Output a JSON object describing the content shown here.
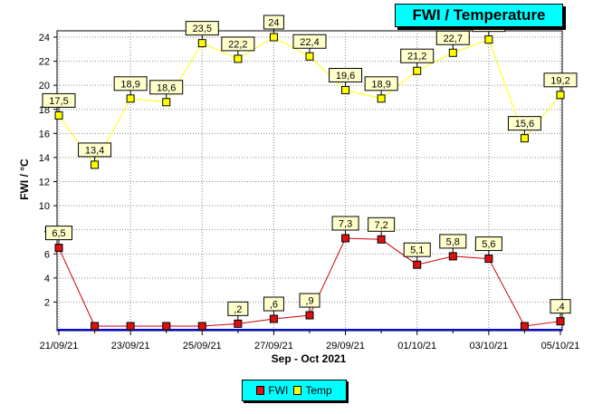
{
  "chart_data": {
    "type": "line",
    "title": "FWI / Temperature",
    "xlabel": "Sep - Oct 2021",
    "ylabel": "FWI / °C",
    "ylim": [
      0,
      24
    ],
    "yticks": [
      "2",
      "4",
      "6",
      "8",
      "10",
      "12",
      "14",
      "16",
      "18",
      "20",
      "22",
      "24"
    ],
    "x": [
      "21/09/21",
      "22/09/21",
      "23/09/21",
      "24/09/21",
      "25/09/21",
      "26/09/21",
      "27/09/21",
      "28/09/21",
      "29/09/21",
      "30/09/21",
      "01/10/21",
      "02/10/21",
      "03/10/21",
      "04/10/21",
      "05/10/21"
    ],
    "xtick_labels": [
      "21/09/21",
      "23/09/21",
      "25/09/21",
      "27/09/21",
      "29/09/21",
      "01/10/21",
      "03/10/21",
      "05/10/21"
    ],
    "grid": true,
    "legend_position": "bottom",
    "series": [
      {
        "name": "FWI",
        "color": "#cc0000",
        "marker_color": "#dd1111",
        "values": [
          6.5,
          0,
          0,
          0,
          0,
          0.2,
          0.6,
          0.9,
          7.3,
          7.2,
          5.1,
          5.8,
          5.6,
          0,
          0.4
        ],
        "labels": [
          "6,5",
          null,
          null,
          null,
          null,
          ",2",
          ",6",
          ",9",
          "7,3",
          "7,2",
          "5,1",
          "5,8",
          "5,6",
          null,
          ",4"
        ]
      },
      {
        "name": "Temp",
        "color": "#ffff00",
        "marker_color": "#ffff00",
        "values": [
          17.5,
          13.4,
          18.9,
          18.6,
          23.5,
          22.2,
          24,
          22.4,
          19.6,
          18.9,
          21.2,
          22.7,
          23.8,
          15.6,
          19.2
        ],
        "labels": [
          "17,5",
          "13,4",
          "18,9",
          "18,6",
          "23,5",
          "22,2",
          "24",
          "22,4",
          "19,6",
          "18,9",
          "21,2",
          "22,7",
          "23,8",
          "15,6",
          "19,2"
        ]
      }
    ]
  }
}
